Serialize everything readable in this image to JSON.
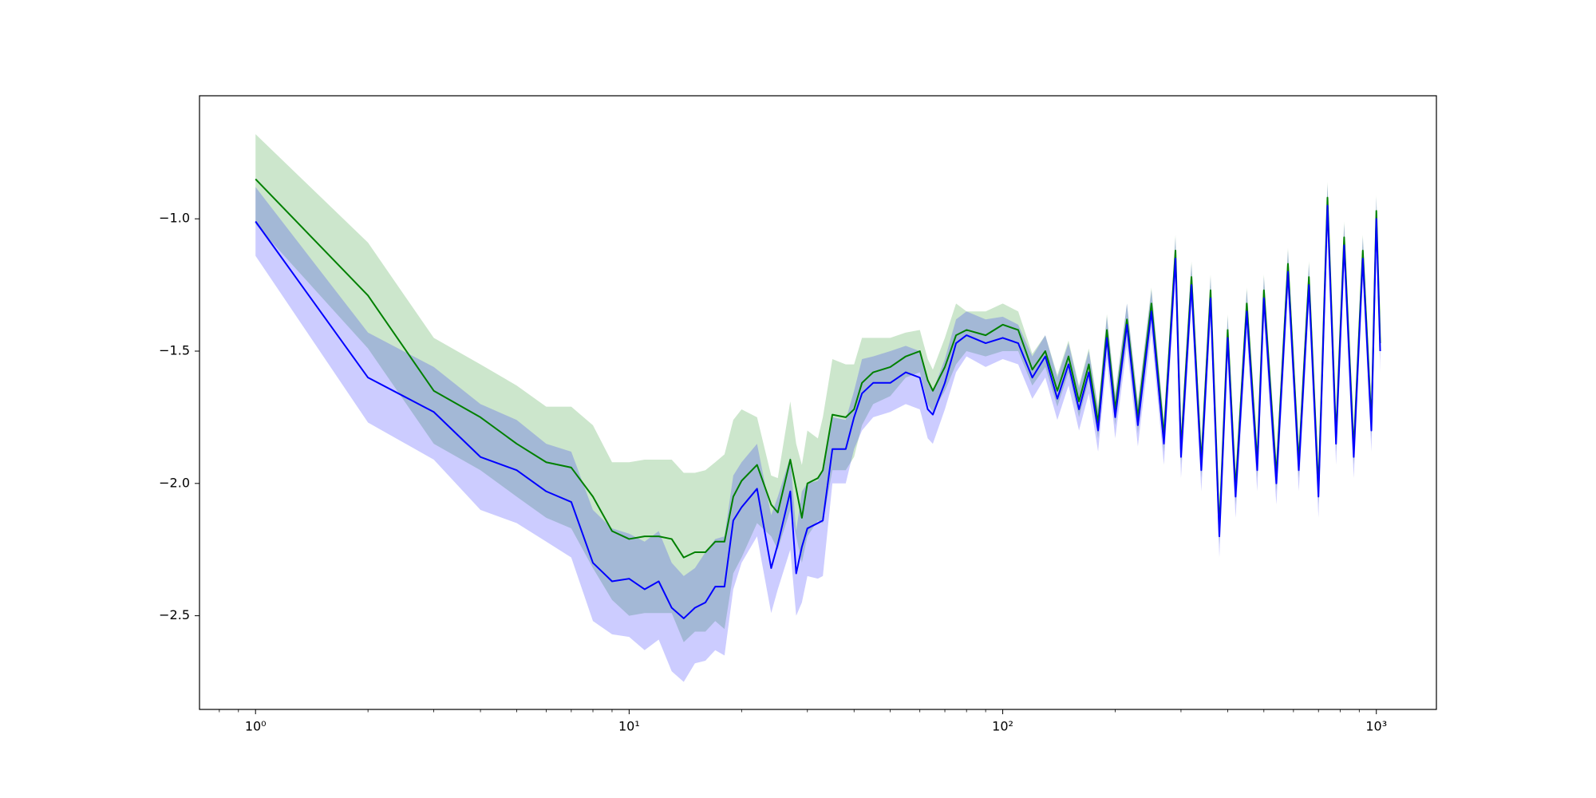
{
  "chart_data": {
    "type": "line",
    "x": [
      1,
      2,
      3,
      4,
      5,
      6,
      7,
      8,
      9,
      10,
      11,
      12,
      13,
      14,
      15,
      16,
      17,
      18,
      19,
      20,
      22,
      24,
      25,
      27,
      28,
      29,
      30,
      32,
      33,
      35,
      38,
      40,
      42,
      45,
      50,
      55,
      60,
      63,
      65,
      70,
      75,
      80,
      90,
      100,
      110,
      120,
      130,
      140,
      150,
      160,
      170,
      180,
      190,
      200,
      215,
      230,
      250,
      270,
      290,
      300,
      320,
      340,
      360,
      380,
      400,
      420,
      450,
      480,
      500,
      540,
      580,
      620,
      660,
      700,
      740,
      780,
      820,
      870,
      920,
      970,
      1000,
      1024
    ],
    "series": [
      {
        "color": "green",
        "fill_alpha": 0.2,
        "values": [
          -0.85,
          -1.29,
          -1.65,
          -1.75,
          -1.85,
          -1.92,
          -1.94,
          -2.05,
          -2.18,
          -2.21,
          -2.2,
          -2.2,
          -2.21,
          -2.28,
          -2.26,
          -2.26,
          -2.22,
          -2.22,
          -2.05,
          -1.99,
          -1.93,
          -2.08,
          -2.11,
          -1.91,
          -2.02,
          -2.13,
          -2.0,
          -1.98,
          -1.95,
          -1.74,
          -1.75,
          -1.72,
          -1.62,
          -1.58,
          -1.56,
          -1.52,
          -1.5,
          -1.61,
          -1.65,
          -1.56,
          -1.44,
          -1.42,
          -1.44,
          -1.4,
          -1.42,
          -1.57,
          -1.5,
          -1.65,
          -1.52,
          -1.69,
          -1.55,
          -1.77,
          -1.42,
          -1.72,
          -1.38,
          -1.75,
          -1.32,
          -1.82,
          -1.12,
          -1.87,
          -1.22,
          -1.92,
          -1.27,
          -2.17,
          -1.42,
          -2.02,
          -1.32,
          -1.92,
          -1.27,
          -1.97,
          -1.17,
          -1.92,
          -1.22,
          -2.02,
          -0.92,
          -1.82,
          -1.07,
          -1.87,
          -1.12,
          -1.77,
          -0.97,
          -1.47
        ],
        "lower": [
          -1.02,
          -1.49,
          -1.85,
          -1.95,
          -2.05,
          -2.13,
          -2.17,
          -2.32,
          -2.44,
          -2.5,
          -2.49,
          -2.49,
          -2.49,
          -2.6,
          -2.56,
          -2.56,
          -2.52,
          -2.55,
          -2.34,
          -2.28,
          -2.15,
          -2.2,
          -2.25,
          -2.1,
          -2.2,
          -2.3,
          -2.2,
          -2.14,
          -2.15,
          -1.95,
          -1.95,
          -1.9,
          -1.78,
          -1.7,
          -1.67,
          -1.6,
          -1.58,
          -1.7,
          -1.73,
          -1.65,
          -1.55,
          -1.5,
          -1.52,
          -1.5,
          -1.5,
          -1.63,
          -1.56,
          -1.71,
          -1.58,
          -1.75,
          -1.61,
          -1.83,
          -1.48,
          -1.78,
          -1.44,
          -1.81,
          -1.38,
          -1.88,
          -1.18,
          -1.93,
          -1.28,
          -1.98,
          -1.33,
          -2.23,
          -1.48,
          -2.08,
          -1.38,
          -1.98,
          -1.33,
          -2.03,
          -1.23,
          -1.98,
          -1.28,
          -2.08,
          -0.98,
          -1.88,
          -1.13,
          -1.93,
          -1.18,
          -1.83,
          -1.03,
          -1.53
        ],
        "upper": [
          -0.68,
          -1.09,
          -1.45,
          -1.55,
          -1.63,
          -1.71,
          -1.71,
          -1.78,
          -1.92,
          -1.92,
          -1.91,
          -1.91,
          -1.91,
          -1.96,
          -1.96,
          -1.95,
          -1.92,
          -1.89,
          -1.76,
          -1.72,
          -1.75,
          -1.97,
          -1.98,
          -1.69,
          -1.85,
          -1.93,
          -1.8,
          -1.83,
          -1.75,
          -1.53,
          -1.55,
          -1.55,
          -1.45,
          -1.45,
          -1.45,
          -1.43,
          -1.42,
          -1.53,
          -1.57,
          -1.45,
          -1.32,
          -1.35,
          -1.35,
          -1.32,
          -1.35,
          -1.51,
          -1.44,
          -1.59,
          -1.46,
          -1.63,
          -1.49,
          -1.71,
          -1.36,
          -1.66,
          -1.32,
          -1.69,
          -1.26,
          -1.76,
          -1.06,
          -1.81,
          -1.16,
          -1.86,
          -1.21,
          -2.11,
          -1.36,
          -1.96,
          -1.26,
          -1.86,
          -1.21,
          -1.91,
          -1.11,
          -1.86,
          -1.16,
          -1.96,
          -0.86,
          -1.76,
          -1.01,
          -1.81,
          -1.06,
          -1.71,
          -0.91,
          -1.41
        ]
      },
      {
        "color": "blue",
        "fill_alpha": 0.2,
        "values": [
          -1.01,
          -1.6,
          -1.73,
          -1.9,
          -1.95,
          -2.03,
          -2.07,
          -2.3,
          -2.37,
          -2.36,
          -2.4,
          -2.37,
          -2.47,
          -2.51,
          -2.47,
          -2.45,
          -2.39,
          -2.39,
          -2.14,
          -2.09,
          -2.02,
          -2.32,
          -2.23,
          -2.03,
          -2.34,
          -2.24,
          -2.17,
          -2.15,
          -2.14,
          -1.87,
          -1.87,
          -1.75,
          -1.66,
          -1.62,
          -1.62,
          -1.58,
          -1.6,
          -1.72,
          -1.74,
          -1.62,
          -1.47,
          -1.44,
          -1.47,
          -1.45,
          -1.47,
          -1.6,
          -1.52,
          -1.68,
          -1.55,
          -1.72,
          -1.58,
          -1.8,
          -1.45,
          -1.75,
          -1.4,
          -1.78,
          -1.35,
          -1.85,
          -1.15,
          -1.9,
          -1.25,
          -1.95,
          -1.3,
          -2.2,
          -1.45,
          -2.05,
          -1.35,
          -1.95,
          -1.3,
          -2.0,
          -1.2,
          -1.95,
          -1.25,
          -2.05,
          -0.95,
          -1.85,
          -1.1,
          -1.9,
          -1.15,
          -1.8,
          -1.0,
          -1.5
        ],
        "lower": [
          -1.14,
          -1.77,
          -1.91,
          -2.1,
          -2.15,
          -2.22,
          -2.28,
          -2.52,
          -2.57,
          -2.58,
          -2.63,
          -2.59,
          -2.71,
          -2.75,
          -2.68,
          -2.67,
          -2.63,
          -2.65,
          -2.4,
          -2.3,
          -2.2,
          -2.49,
          -2.4,
          -2.25,
          -2.5,
          -2.45,
          -2.35,
          -2.36,
          -2.35,
          -2.0,
          -2.0,
          -1.87,
          -1.8,
          -1.75,
          -1.73,
          -1.7,
          -1.72,
          -1.83,
          -1.85,
          -1.72,
          -1.58,
          -1.52,
          -1.56,
          -1.53,
          -1.55,
          -1.68,
          -1.6,
          -1.76,
          -1.63,
          -1.8,
          -1.66,
          -1.88,
          -1.53,
          -1.83,
          -1.48,
          -1.86,
          -1.43,
          -1.93,
          -1.23,
          -1.98,
          -1.33,
          -2.03,
          -1.38,
          -2.28,
          -1.53,
          -2.13,
          -1.43,
          -2.03,
          -1.38,
          -2.08,
          -1.28,
          -2.03,
          -1.33,
          -2.13,
          -1.03,
          -1.93,
          -1.18,
          -1.98,
          -1.23,
          -1.88,
          -1.08,
          -1.58
        ],
        "upper": [
          -0.88,
          -1.43,
          -1.56,
          -1.7,
          -1.76,
          -1.85,
          -1.88,
          -2.1,
          -2.17,
          -2.19,
          -2.22,
          -2.18,
          -2.3,
          -2.35,
          -2.32,
          -2.26,
          -2.21,
          -2.2,
          -1.97,
          -1.92,
          -1.85,
          -2.12,
          -2.05,
          -1.9,
          -2.18,
          -2.03,
          -2.0,
          -1.99,
          -1.95,
          -1.75,
          -1.76,
          -1.65,
          -1.53,
          -1.52,
          -1.5,
          -1.48,
          -1.5,
          -1.62,
          -1.65,
          -1.53,
          -1.38,
          -1.35,
          -1.38,
          -1.37,
          -1.4,
          -1.52,
          -1.44,
          -1.6,
          -1.47,
          -1.64,
          -1.5,
          -1.72,
          -1.37,
          -1.67,
          -1.32,
          -1.7,
          -1.27,
          -1.77,
          -1.07,
          -1.82,
          -1.17,
          -1.87,
          -1.22,
          -2.12,
          -1.37,
          -1.97,
          -1.27,
          -1.87,
          -1.22,
          -1.92,
          -1.12,
          -1.87,
          -1.17,
          -1.97,
          -0.87,
          -1.77,
          -1.02,
          -1.82,
          -1.07,
          -1.72,
          -0.92,
          -1.42
        ]
      }
    ],
    "xscale": "log",
    "xlim": [
      0.708,
      1448
    ],
    "ylim": [
      -2.854,
      -0.535
    ],
    "xticks": [
      {
        "value": 1,
        "label": "10⁰"
      },
      {
        "value": 10,
        "label": "10¹"
      },
      {
        "value": 100,
        "label": "10²"
      },
      {
        "value": 1000,
        "label": "10³"
      }
    ],
    "xminorticks": [
      0.8,
      0.9,
      2,
      3,
      4,
      5,
      6,
      7,
      8,
      9,
      20,
      30,
      40,
      50,
      60,
      70,
      80,
      90,
      200,
      300,
      400,
      500,
      600,
      700,
      800,
      900
    ],
    "yticks": [
      {
        "value": -1.0,
        "label": "−1.0"
      },
      {
        "value": -1.5,
        "label": "−1.5"
      },
      {
        "value": -2.0,
        "label": "−2.0"
      },
      {
        "value": -2.5,
        "label": "−2.5"
      }
    ]
  }
}
